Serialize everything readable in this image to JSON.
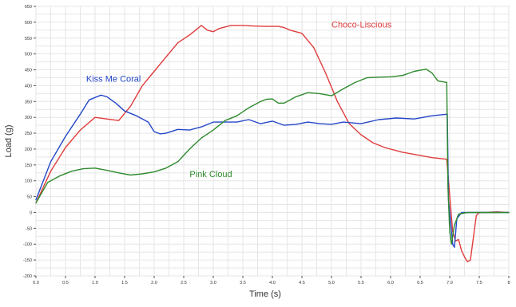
{
  "chart_data": {
    "type": "line",
    "xlabel": "Time (s)",
    "ylabel": "Load (g)",
    "xlim": [
      0,
      8
    ],
    "ylim": [
      -200,
      650
    ],
    "x_ticks": [
      "0.0",
      "0.5",
      "1.0",
      "1.5",
      "2.0",
      "2.5",
      "3.0",
      "3.5",
      "4.0",
      "4.5",
      "5.0",
      "5.5",
      "6.0",
      "6.5",
      "7.0",
      "7.5",
      "8"
    ],
    "y_ticks": [
      "-200",
      "-150",
      "-100",
      "-50",
      "0",
      "50",
      "100",
      "150",
      "200",
      "250",
      "300",
      "350",
      "400",
      "450",
      "500",
      "550",
      "600",
      "650"
    ],
    "grid": true,
    "legend": "inline-labels",
    "series": [
      {
        "name": "Choco-Liscious",
        "color": "#e03c3c",
        "x": [
          0,
          0.25,
          0.5,
          0.75,
          1.0,
          1.2,
          1.4,
          1.6,
          1.8,
          2.0,
          2.2,
          2.4,
          2.6,
          2.8,
          2.9,
          3.0,
          3.1,
          3.2,
          3.3,
          3.5,
          3.7,
          3.9,
          4.1,
          4.2,
          4.3,
          4.4,
          4.5,
          4.7,
          4.9,
          5.1,
          5.3,
          5.5,
          5.7,
          5.9,
          6.2,
          6.5,
          6.7,
          6.95,
          6.98,
          7.05,
          7.1,
          7.15,
          7.2,
          7.25,
          7.3,
          7.35,
          7.4,
          7.45,
          7.5,
          7.6,
          7.8,
          8.0
        ],
        "y": [
          30,
          130,
          205,
          260,
          300,
          295,
          290,
          335,
          400,
          445,
          490,
          535,
          560,
          590,
          575,
          570,
          580,
          585,
          590,
          590,
          588,
          587,
          587,
          583,
          575,
          570,
          565,
          520,
          440,
          350,
          280,
          245,
          220,
          205,
          190,
          180,
          173,
          168,
          100,
          -60,
          -90,
          -85,
          -120,
          -140,
          -155,
          -150,
          -80,
          -10,
          0,
          0,
          2,
          0
        ]
      },
      {
        "name": "Kiss Me Coral",
        "color": "#2447c8",
        "x": [
          0,
          0.25,
          0.5,
          0.75,
          0.9,
          1.1,
          1.2,
          1.35,
          1.5,
          1.7,
          1.9,
          2.0,
          2.1,
          2.2,
          2.4,
          2.6,
          2.8,
          3.0,
          3.2,
          3.4,
          3.6,
          3.8,
          4.0,
          4.2,
          4.4,
          4.6,
          4.8,
          5.0,
          5.2,
          5.5,
          5.8,
          6.1,
          6.4,
          6.7,
          6.96,
          6.98,
          7.05,
          7.08,
          7.12,
          7.2,
          7.3,
          7.5,
          7.7,
          8.0
        ],
        "y": [
          40,
          160,
          240,
          310,
          355,
          370,
          365,
          345,
          320,
          305,
          285,
          255,
          248,
          250,
          262,
          260,
          270,
          285,
          285,
          285,
          293,
          280,
          288,
          275,
          278,
          285,
          280,
          278,
          285,
          280,
          293,
          298,
          295,
          305,
          310,
          40,
          -100,
          -110,
          -20,
          0,
          0,
          0,
          0,
          0
        ]
      },
      {
        "name": "Pink Cloud",
        "color": "#2e8a2e",
        "x": [
          0,
          0.2,
          0.4,
          0.6,
          0.8,
          1.0,
          1.2,
          1.4,
          1.6,
          1.8,
          2.0,
          2.2,
          2.4,
          2.6,
          2.8,
          3.0,
          3.2,
          3.4,
          3.6,
          3.8,
          3.9,
          4.0,
          4.1,
          4.2,
          4.4,
          4.6,
          4.8,
          5.0,
          5.2,
          5.4,
          5.6,
          5.8,
          6.0,
          6.2,
          6.4,
          6.6,
          6.7,
          6.8,
          6.95,
          6.97,
          7.0,
          7.03,
          7.08,
          7.15,
          7.3,
          7.6,
          8.0
        ],
        "y": [
          30,
          95,
          115,
          130,
          138,
          140,
          133,
          125,
          118,
          122,
          128,
          140,
          160,
          200,
          235,
          260,
          290,
          305,
          330,
          350,
          357,
          358,
          345,
          345,
          365,
          378,
          375,
          368,
          390,
          410,
          425,
          427,
          428,
          432,
          445,
          452,
          440,
          415,
          410,
          80,
          -60,
          -100,
          -40,
          -5,
          0,
          0,
          0
        ]
      }
    ],
    "annotations": [
      {
        "text": "Choco-Liscious",
        "x": 5.0,
        "y": 583,
        "color": "#e03c3c"
      },
      {
        "text": "Kiss Me Coral",
        "x": 0.85,
        "y": 412,
        "color": "#2447c8"
      },
      {
        "text": "Pink Cloud",
        "x": 2.6,
        "y": 112,
        "color": "#2e8a2e"
      }
    ]
  }
}
